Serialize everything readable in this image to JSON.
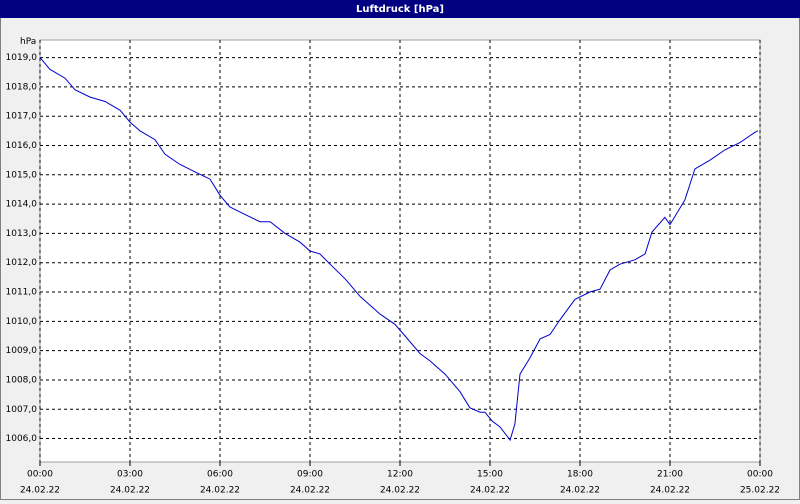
{
  "chart_data": {
    "type": "line",
    "title": "Luftdruck [hPa]",
    "y_unit": "hPa",
    "x": [
      0,
      0.33,
      0.83,
      1.17,
      1.67,
      2.17,
      2.67,
      3,
      3.33,
      3.83,
      4.17,
      4.67,
      5.17,
      5.67,
      6,
      6.33,
      6.83,
      7.33,
      7.67,
      8.17,
      8.67,
      9,
      9.33,
      9.67,
      10.17,
      10.67,
      11.33,
      11.83,
      12.17,
      12.67,
      13,
      13.5,
      14,
      14.33,
      14.67,
      14.83,
      15.07,
      15.33,
      15.67,
      15.83,
      16,
      16.33,
      16.67,
      17,
      17.33,
      17.83,
      18.33,
      18.67,
      19,
      19.33,
      19.83,
      20.17,
      20.4,
      20.83,
      21,
      21.5,
      21.83,
      22.33,
      22.83,
      23.33,
      23.83,
      23.93
    ],
    "series": [
      {
        "name": "Luftdruck",
        "color": "#0000cc",
        "values": [
          1019.0,
          1018.6,
          1018.3,
          1017.9,
          1017.65,
          1017.5,
          1017.2,
          1016.8,
          1016.5,
          1016.2,
          1015.7,
          1015.35,
          1015.1,
          1014.85,
          1014.3,
          1013.9,
          1013.65,
          1013.4,
          1013.4,
          1013.0,
          1012.7,
          1012.4,
          1012.3,
          1011.95,
          1011.45,
          1010.85,
          1010.25,
          1009.9,
          1009.5,
          1008.9,
          1008.65,
          1008.2,
          1007.6,
          1007.05,
          1006.9,
          1006.9,
          1006.6,
          1006.4,
          1005.95,
          1006.5,
          1008.2,
          1008.75,
          1009.4,
          1009.55,
          1010.05,
          1010.75,
          1011.0,
          1011.1,
          1011.75,
          1011.95,
          1012.1,
          1012.3,
          1013.05,
          1013.55,
          1013.3,
          1014.15,
          1015.2,
          1015.5,
          1015.85,
          1016.1,
          1016.45,
          1016.5
        ]
      }
    ],
    "xlim": [
      0,
      24
    ],
    "xticks": [
      {
        "value": 0,
        "label": "00:00",
        "date": "24.02.22"
      },
      {
        "value": 3,
        "label": "03:00",
        "date": "24.02.22"
      },
      {
        "value": 6,
        "label": "06:00",
        "date": "24.02.22"
      },
      {
        "value": 9,
        "label": "09:00",
        "date": "24.02.22"
      },
      {
        "value": 12,
        "label": "12:00",
        "date": "24.02.22"
      },
      {
        "value": 15,
        "label": "15:00",
        "date": "24.02.22"
      },
      {
        "value": 18,
        "label": "18:00",
        "date": "24.02.22"
      },
      {
        "value": 21,
        "label": "21:00",
        "date": "24.02.22"
      },
      {
        "value": 24,
        "label": "00:00",
        "date": "25.02.22"
      }
    ],
    "ylim": [
      1005.2,
      1019.6
    ],
    "yticks": [
      {
        "value": 1006,
        "label": "1006,0"
      },
      {
        "value": 1007,
        "label": "1007,0"
      },
      {
        "value": 1008,
        "label": "1008,0"
      },
      {
        "value": 1009,
        "label": "1009,0"
      },
      {
        "value": 1010,
        "label": "1010,0"
      },
      {
        "value": 1011,
        "label": "1011,0"
      },
      {
        "value": 1012,
        "label": "1012,0"
      },
      {
        "value": 1013,
        "label": "1013,0"
      },
      {
        "value": 1014,
        "label": "1014,0"
      },
      {
        "value": 1015,
        "label": "1015,0"
      },
      {
        "value": 1016,
        "label": "1016,0"
      },
      {
        "value": 1017,
        "label": "1017,0"
      },
      {
        "value": 1018,
        "label": "1018,0"
      },
      {
        "value": 1019,
        "label": "1019,0"
      }
    ],
    "grid": true
  }
}
